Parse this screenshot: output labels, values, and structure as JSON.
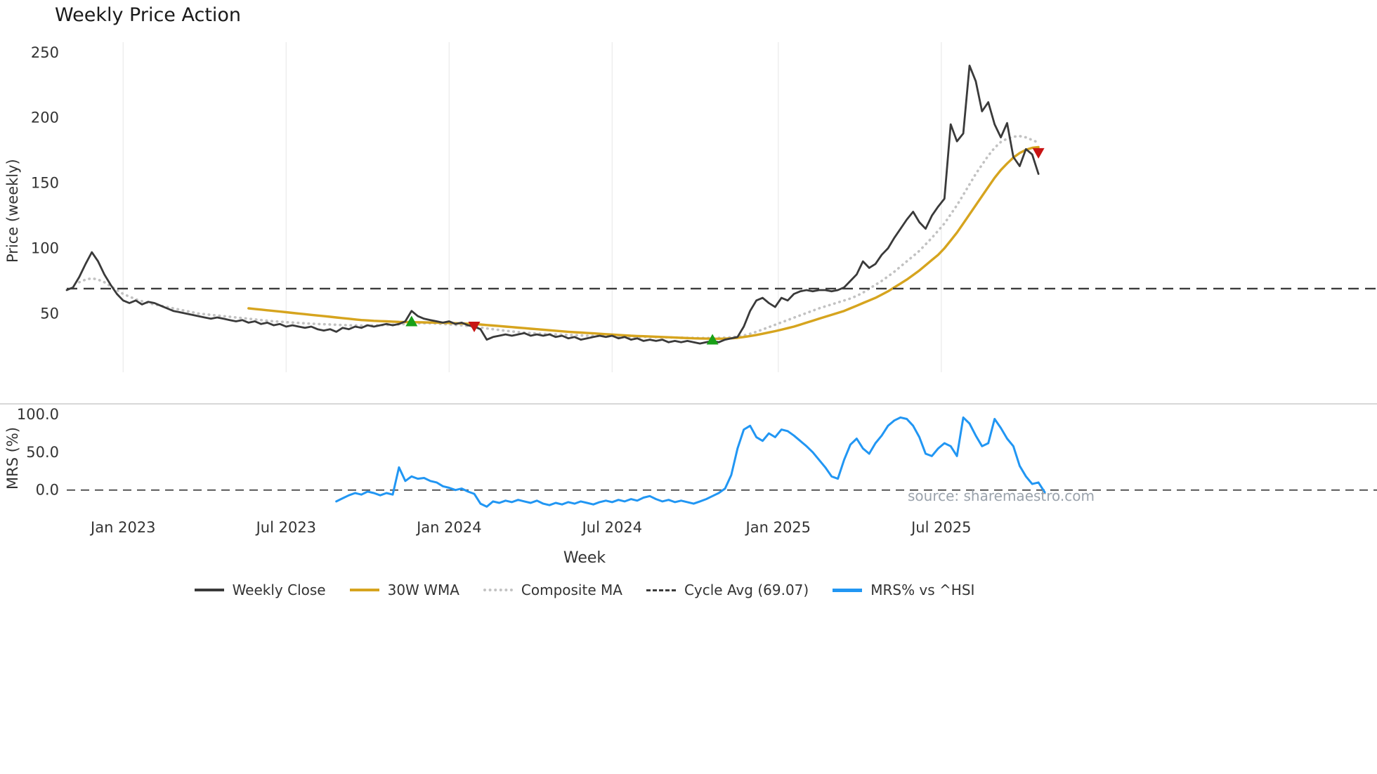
{
  "title": "Weekly Price Action",
  "axes": {
    "price_ylabel": "Price (weekly)",
    "mrs_ylabel": "MRS (%)",
    "xlabel": "Week"
  },
  "source_text": "source: sharemaestro.com",
  "colors": {
    "weekly_close": "#3a3a3a",
    "wma": "#d6a41e",
    "composite": "#c2c2c2",
    "cycle": "#3b3b3b",
    "mrs": "#2196f3",
    "buy": "#18a018",
    "sell": "#c81414",
    "grid": "#ededed",
    "tick": "#333333",
    "zero": "#555555",
    "spine": "#d8d8d8"
  },
  "legend": [
    {
      "label": "Weekly Close",
      "style": "solid",
      "color": "#3a3a3a"
    },
    {
      "label": "30W WMA",
      "style": "solid",
      "color": "#d6a41e"
    },
    {
      "label": "Composite MA",
      "style": "dotted",
      "color": "#c2c2c2"
    },
    {
      "label": "Cycle Avg (69.07)",
      "style": "dashed",
      "color": "#3b3b3b"
    },
    {
      "label": "MRS% vs ^HSI",
      "style": "solid-thick",
      "color": "#2196f3"
    }
  ],
  "chart_data": {
    "type": "line",
    "title": "Weekly Price Action",
    "x_unit": "week_index_from_2022-10-31",
    "total_weeks": 209,
    "xlabel": "Week",
    "x_ticks": [
      {
        "label": "Jan 2023",
        "week": 9
      },
      {
        "label": "Jul 2023",
        "week": 35
      },
      {
        "label": "Jan 2024",
        "week": 61
      },
      {
        "label": "Jul 2024",
        "week": 87
      },
      {
        "label": "Jan 2025",
        "week": 113.5
      },
      {
        "label": "Jul 2025",
        "week": 139.5
      }
    ],
    "panels": [
      {
        "name": "price",
        "ylabel": "Price (weekly)",
        "ylim": [
          5,
          258
        ],
        "yticks": [
          {
            "v": 50,
            "label": "50"
          },
          {
            "v": 100,
            "label": "100"
          },
          {
            "v": 150,
            "label": "150"
          },
          {
            "v": 200,
            "label": "200"
          },
          {
            "v": 250,
            "label": "250"
          }
        ],
        "cycle_avg": 69.07,
        "grid": true,
        "series": [
          {
            "name": "Weekly Close",
            "style": "solid",
            "color_key": "weekly_close",
            "width": 2.8,
            "start_week": 0,
            "values": [
              68,
              70,
              78,
              88,
              97,
              90,
              80,
              72,
              65,
              60,
              58,
              60,
              57,
              59,
              58,
              56,
              54,
              52,
              51,
              50,
              49,
              48,
              47,
              46,
              47,
              46,
              45,
              44,
              45,
              43,
              44,
              42,
              43,
              41,
              42,
              40,
              41,
              40,
              39,
              40,
              38,
              37,
              38,
              36,
              39,
              38,
              40,
              39,
              41,
              40,
              41,
              42,
              41,
              42,
              44,
              52,
              48,
              46,
              45,
              44,
              43,
              44,
              42,
              43,
              41,
              40,
              38,
              30,
              32,
              33,
              34,
              33,
              34,
              35,
              33,
              34,
              33,
              34,
              32,
              33,
              31,
              32,
              30,
              31,
              32,
              33,
              32,
              33,
              31,
              32,
              30,
              31,
              29,
              30,
              29,
              30,
              28,
              29,
              28,
              29,
              28,
              27,
              28,
              29,
              28,
              30,
              31,
              32,
              40,
              52,
              60,
              62,
              58,
              55,
              62,
              60,
              65,
              67,
              68,
              67,
              68,
              68,
              67,
              68,
              70,
              75,
              80,
              90,
              85,
              88,
              95,
              100,
              108,
              115,
              122,
              128,
              120,
              115,
              125,
              132,
              138,
              195,
              182,
              188,
              240,
              228,
              205,
              212,
              195,
              185,
              196,
              170,
              163,
              176,
              172,
              157
            ]
          },
          {
            "name": "30W WMA",
            "style": "solid",
            "color_key": "wma",
            "width": 3.4,
            "start_week": 29,
            "values": [
              54,
              53.5,
              53,
              52.5,
              52,
              51.5,
              51,
              50.5,
              50,
              49.5,
              49,
              48.5,
              48,
              47.5,
              47,
              46.5,
              46,
              45.5,
              45,
              44.7,
              44.4,
              44.2,
              44,
              43.8,
              43.6,
              43.5,
              43.4,
              43.3,
              43.2,
              43.1,
              43,
              42.9,
              42.8,
              42.6,
              42.4,
              42.2,
              42,
              41.6,
              41.2,
              40.8,
              40.4,
              40,
              39.6,
              39.2,
              38.8,
              38.4,
              38,
              37.6,
              37.2,
              36.8,
              36.4,
              36,
              35.7,
              35.4,
              35.1,
              34.8,
              34.5,
              34.2,
              33.9,
              33.6,
              33.3,
              33,
              32.8,
              32.6,
              32.4,
              32.2,
              32,
              31.8,
              31.6,
              31.4,
              31.2,
              31,
              30.9,
              30.8,
              30.7,
              30.7,
              30.8,
              31,
              31.4,
              32,
              32.8,
              33.6,
              34.5,
              35.5,
              36.5,
              37.6,
              38.8,
              40,
              41.5,
              43,
              44.5,
              46,
              47.5,
              49,
              50.5,
              52,
              54,
              56,
              58,
              60,
              62,
              64.5,
              67,
              70,
              73,
              76,
              79.5,
              83,
              87,
              91,
              95,
              100,
              106,
              112,
              119,
              126,
              133,
              140,
              147,
              154,
              160,
              165,
              169.5,
              173,
              175.5,
              177,
              177.5
            ]
          },
          {
            "name": "Composite MA",
            "style": "dotted",
            "color_key": "composite",
            "width": 2.6,
            "start_week": 2,
            "values": [
              74,
              76,
              77,
              76,
              74,
              71,
              68,
              65,
              63,
              61,
              59.5,
              58,
              57,
              56,
              55,
              54,
              53,
              52,
              51,
              50,
              49.5,
              49,
              48.5,
              48,
              47.5,
              47,
              46.5,
              46,
              45.5,
              45,
              44.5,
              44,
              43.7,
              43.4,
              43.1,
              42.8,
              42.5,
              42.2,
              42,
              41.8,
              41.6,
              41.4,
              41.2,
              41,
              40.9,
              40.8,
              40.8,
              40.9,
              41,
              41.2,
              41.4,
              41.7,
              42,
              42.3,
              42.5,
              42.6,
              42.5,
              42.3,
              42,
              41.7,
              41.3,
              40.9,
              40.4,
              39.9,
              39.3,
              38.6,
              38,
              37.4,
              36.8,
              36.3,
              35.8,
              35.4,
              35,
              34.7,
              34.4,
              34.2,
              34,
              33.8,
              33.6,
              33.4,
              33.2,
              33,
              32.9,
              32.8,
              32.7,
              32.6,
              32.5,
              32.4,
              32.3,
              32.2,
              32.1,
              32,
              31.9,
              31.8,
              31.7,
              31.6,
              31.5,
              31.4,
              31.3,
              31.2,
              31.2,
              31.2,
              31.3,
              31.5,
              31.8,
              32.4,
              33.2,
              34.5,
              36,
              37.8,
              39.6,
              41.4,
              43.2,
              45,
              46.8,
              48.6,
              50.4,
              52.2,
              54,
              55.5,
              57,
              58.5,
              60,
              61.5,
              63.5,
              66,
              69,
              72,
              75,
              78.5,
              82,
              86,
              90,
              94,
              98,
              103,
              108,
              113.5,
              119,
              126,
              133,
              141,
              149,
              157,
              164,
              171,
              177,
              181.5,
              184,
              185.5,
              186,
              185,
              183,
              181
            ]
          }
        ],
        "markers": {
          "buy": [
            {
              "week": 55,
              "value": 44
            },
            {
              "week": 103,
              "value": 30
            }
          ],
          "sell": [
            {
              "week": 65,
              "value": 40
            },
            {
              "week": 155,
              "value": 173
            }
          ]
        }
      },
      {
        "name": "mrs",
        "ylabel": "MRS (%)",
        "ylim": [
          -30,
          114
        ],
        "yticks": [
          {
            "v": 0,
            "label": "0.0"
          },
          {
            "v": 50,
            "label": "50.0"
          },
          {
            "v": 100,
            "label": "100.0"
          }
        ],
        "zero_line": 0,
        "grid": false,
        "series": [
          {
            "name": "MRS% vs ^HSI",
            "style": "solid",
            "color_key": "mrs",
            "width": 3,
            "start_week": 43,
            "values": [
              -15,
              -11,
              -7,
              -4,
              -6,
              -2,
              -4,
              -7,
              -4,
              -6,
              30,
              12,
              18,
              15,
              16,
              12,
              10,
              5,
              3,
              0,
              2,
              -2,
              -5,
              -18,
              -22,
              -15,
              -17,
              -14,
              -16,
              -13,
              -15,
              -17,
              -14,
              -18,
              -20,
              -17,
              -19,
              -16,
              -18,
              -15,
              -17,
              -19,
              -16,
              -14,
              -16,
              -13,
              -15,
              -12,
              -14,
              -10,
              -8,
              -12,
              -15,
              -13,
              -16,
              -14,
              -16,
              -18,
              -15,
              -12,
              -8,
              -4,
              2,
              20,
              55,
              80,
              85,
              70,
              65,
              75,
              70,
              80,
              78,
              72,
              65,
              58,
              50,
              40,
              30,
              18,
              15,
              40,
              60,
              68,
              55,
              48,
              62,
              72,
              85,
              92,
              96,
              94,
              85,
              70,
              48,
              45,
              55,
              62,
              58,
              45,
              96,
              88,
              72,
              58,
              62,
              94,
              82,
              68,
              58,
              32,
              18,
              8,
              10,
              -3
            ]
          }
        ]
      }
    ]
  }
}
